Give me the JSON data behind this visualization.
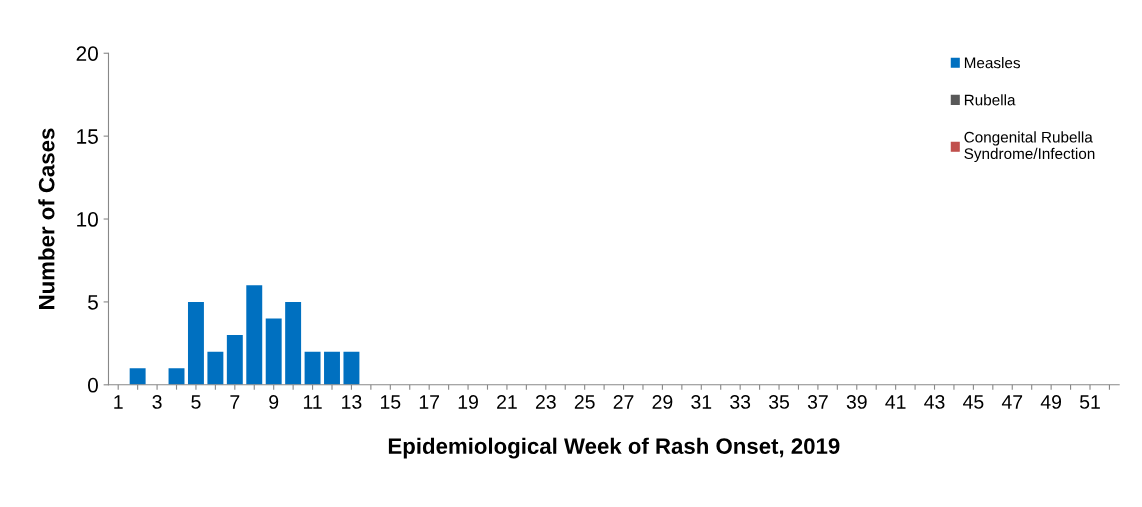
{
  "chart_data": {
    "type": "bar",
    "stacked": true,
    "xlabel": "Epidemiological Week of Rash Onset, 2019",
    "ylabel": "Number of Cases",
    "categories": [
      "1",
      null,
      "3",
      null,
      "5",
      null,
      "7",
      null,
      "9",
      null,
      "11",
      null,
      "13",
      null,
      "15",
      null,
      "17",
      null,
      "19",
      null,
      "21",
      null,
      "23",
      null,
      "25",
      null,
      "27",
      null,
      "29",
      null,
      "31",
      null,
      "33",
      null,
      "35",
      null,
      "37",
      null,
      "39",
      null,
      "41",
      null,
      "43",
      null,
      "45",
      null,
      "47",
      null,
      "49",
      null,
      "51",
      null
    ],
    "series": [
      {
        "name": "Measles",
        "color": "#0070c0",
        "values": [
          0,
          1,
          0,
          1,
          5,
          2,
          3,
          6,
          4,
          5,
          2,
          2,
          2,
          0,
          0,
          0,
          0,
          0,
          0,
          0,
          0,
          0,
          0,
          0,
          0,
          0,
          0,
          0,
          0,
          0,
          0,
          0,
          0,
          0,
          0,
          0,
          0,
          0,
          0,
          0,
          0,
          0,
          0,
          0,
          0,
          0,
          0,
          0,
          0,
          0,
          0,
          0
        ]
      },
      {
        "name": "Rubella",
        "color": "#595959",
        "values": [
          0,
          0,
          0,
          0,
          0,
          0,
          0,
          0,
          0,
          0,
          0,
          0,
          0,
          0,
          0,
          0,
          0,
          0,
          0,
          0,
          0,
          0,
          0,
          0,
          0,
          0,
          0,
          0,
          0,
          0,
          0,
          0,
          0,
          0,
          0,
          0,
          0,
          0,
          0,
          0,
          0,
          0,
          0,
          0,
          0,
          0,
          0,
          0,
          0,
          0,
          0,
          0
        ]
      },
      {
        "name": "Congenital Rubella\nSyndrome/Infection",
        "color": "#c0504d",
        "values": [
          0,
          0,
          0,
          0,
          0,
          0,
          0,
          0,
          0,
          0,
          0,
          0,
          0,
          0,
          0,
          0,
          0,
          0,
          0,
          0,
          0,
          0,
          0,
          0,
          0,
          0,
          0,
          0,
          0,
          0,
          0,
          0,
          0,
          0,
          0,
          0,
          0,
          0,
          0,
          0,
          0,
          0,
          0,
          0,
          0,
          0,
          0,
          0,
          0,
          0,
          0,
          0
        ]
      }
    ],
    "ylim": [
      0,
      20
    ],
    "yticks": [
      0,
      5,
      10,
      15,
      20
    ],
    "grid": false,
    "legend": "top right"
  }
}
